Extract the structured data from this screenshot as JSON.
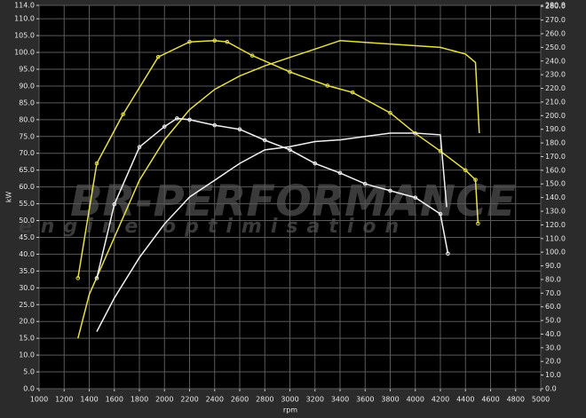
{
  "chart_data": {
    "type": "line",
    "x_label": "rpm",
    "y_label": "kW",
    "brand": "BR-PERFORMANCE",
    "brand_subtitle": "engine optimisation",
    "xlim": [
      1000,
      5000
    ],
    "xticks": [
      1000,
      1200,
      1400,
      1600,
      1800,
      2000,
      2200,
      2400,
      2600,
      2800,
      3000,
      3200,
      3400,
      3600,
      3800,
      4000,
      4200,
      4400,
      4600,
      4800,
      5000
    ],
    "ylim": [
      0,
      114
    ],
    "yticks": [
      {
        "value": 0,
        "label": "0.0"
      },
      {
        "value": 5,
        "label": "5.0"
      },
      {
        "value": 10,
        "label": "10.0"
      },
      {
        "value": 15,
        "label": "15.0"
      },
      {
        "value": 20,
        "label": "20.0"
      },
      {
        "value": 25,
        "label": "25.0"
      },
      {
        "value": 30,
        "label": "30.0"
      },
      {
        "value": 35,
        "label": "35.0"
      },
      {
        "value": 40,
        "label": "40.0"
      },
      {
        "value": 45,
        "label": "45.0"
      },
      {
        "value": 50,
        "label": "50.0"
      },
      {
        "value": 55,
        "label": "55.0"
      },
      {
        "value": 60,
        "label": "60.0"
      },
      {
        "value": 65,
        "label": "65.0"
      },
      {
        "value": 70,
        "label": "70.0"
      },
      {
        "value": 75,
        "label": "75.0"
      },
      {
        "value": 80,
        "label": "80.0"
      },
      {
        "value": 85,
        "label": "85.0"
      },
      {
        "value": 90,
        "label": "90.0"
      },
      {
        "value": 95,
        "label": "95.0"
      },
      {
        "value": 100,
        "label": "100.0"
      },
      {
        "value": 105,
        "label": "105.0"
      },
      {
        "value": 110,
        "label": "110.0"
      },
      {
        "value": 114,
        "label": "114.0"
      }
    ],
    "y2lim": [
      0,
      280.8
    ],
    "y2ticks": [
      {
        "value": 0,
        "label": "0.0"
      },
      {
        "value": 10,
        "label": "10.0"
      },
      {
        "value": 20,
        "label": "20.0"
      },
      {
        "value": 30,
        "label": "30.0"
      },
      {
        "value": 40,
        "label": "40.0"
      },
      {
        "value": 50,
        "label": "50.0"
      },
      {
        "value": 60,
        "label": "60.0"
      },
      {
        "value": 70,
        "label": "70.0"
      },
      {
        "value": 80,
        "label": "80.0"
      },
      {
        "value": 90,
        "label": "90.0"
      },
      {
        "value": 100,
        "label": "100.0"
      },
      {
        "value": 110,
        "label": "110.0"
      },
      {
        "value": 120,
        "label": "120.0"
      },
      {
        "value": 130,
        "label": "130.0"
      },
      {
        "value": 140,
        "label": "140.0"
      },
      {
        "value": 150,
        "label": "150.0"
      },
      {
        "value": 160,
        "label": "160.0"
      },
      {
        "value": 170,
        "label": "170.0"
      },
      {
        "value": 180,
        "label": "180.0"
      },
      {
        "value": 190,
        "label": "190.0"
      },
      {
        "value": 200,
        "label": "200.0"
      },
      {
        "value": 210,
        "label": "210.0"
      },
      {
        "value": 220,
        "label": "220.0"
      },
      {
        "value": 230,
        "label": "230.0"
      },
      {
        "value": 240,
        "label": "240.0"
      },
      {
        "value": 250,
        "label": "250.0"
      },
      {
        "value": 260,
        "label": "260.0"
      },
      {
        "value": 270,
        "label": "270.0"
      },
      {
        "value": 280,
        "label": "280.0"
      },
      {
        "value": 280.8,
        "label": "280.8"
      }
    ],
    "grid": true,
    "series": [
      {
        "color": "#e6e04a",
        "axis": "y",
        "markers": false,
        "x": [
          1310,
          1400,
          1600,
          1800,
          2000,
          2200,
          2400,
          2600,
          2800,
          3000,
          3200,
          3400,
          3600,
          3800,
          4000,
          4200,
          4400,
          4480,
          4510
        ],
        "values": [
          15,
          28,
          45,
          62,
          74,
          83,
          89,
          93,
          96,
          98.5,
          101,
          103.5,
          103,
          102.5,
          102,
          101.5,
          99.5,
          97,
          76
        ]
      },
      {
        "color": "#e6e04a",
        "axis": "y2",
        "markers": true,
        "x": [
          1310,
          1460,
          1670,
          1950,
          2200,
          2400,
          2500,
          2700,
          3000,
          3300,
          3500,
          3800,
          4000,
          4200,
          4400,
          4480,
          4500
        ],
        "values": [
          81,
          165,
          201,
          243,
          254,
          255,
          254,
          244,
          232,
          222,
          217,
          202,
          187,
          174,
          160,
          153,
          121
        ]
      },
      {
        "color": "#f2f2f2",
        "axis": "y",
        "markers": false,
        "x": [
          1460,
          1600,
          1800,
          2000,
          2200,
          2400,
          2600,
          2800,
          3000,
          3200,
          3400,
          3600,
          3800,
          4000,
          4200,
          4250
        ],
        "values": [
          17,
          27,
          39,
          49,
          57,
          62,
          67,
          71,
          72,
          73.5,
          74,
          75,
          76,
          76,
          75.5,
          54
        ]
      },
      {
        "color": "#f2f2f2",
        "axis": "y2",
        "markers": true,
        "x": [
          1460,
          1600,
          1800,
          2000,
          2100,
          2200,
          2400,
          2600,
          2800,
          3000,
          3200,
          3400,
          3600,
          3800,
          4000,
          4200,
          4260
        ],
        "values": [
          81,
          135,
          177,
          192,
          198,
          197,
          193,
          190,
          182,
          175,
          165,
          158,
          150,
          145,
          140,
          128,
          99
        ]
      }
    ]
  }
}
